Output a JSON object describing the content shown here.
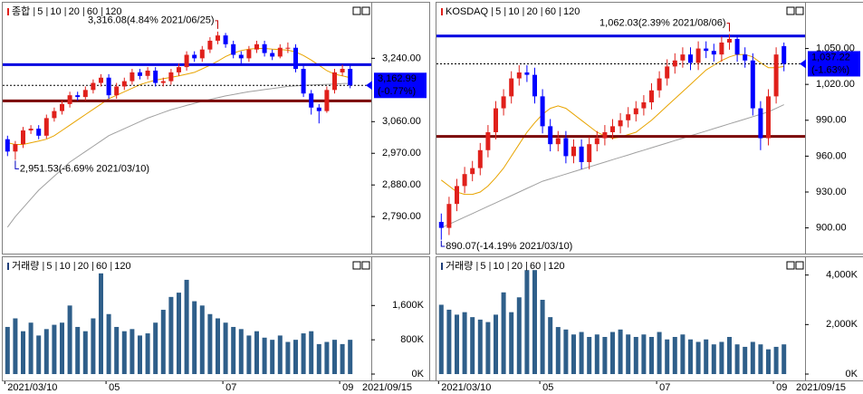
{
  "chart_data": [
    {
      "type": "candlestick",
      "legend": [
        {
          "name": "종합",
          "color": "#e0201b"
        },
        {
          "name": "5",
          "color": "#e0201b"
        },
        {
          "name": "10",
          "color": "#1a2fd0"
        },
        {
          "name": "20",
          "color": "#e8a400"
        },
        {
          "name": "60",
          "color": "#1a8a1a"
        },
        {
          "name": "120",
          "color": "#a0a0a0"
        }
      ],
      "up_color": "#e0201b",
      "down_color": "#0000ff",
      "open": [
        3010,
        2975,
        2996,
        3035,
        3040,
        3020,
        3070,
        3090,
        3110,
        3135,
        3130,
        3150,
        3170,
        3185,
        3135,
        3160,
        3175,
        3200,
        3190,
        3205,
        3170,
        3175,
        3200,
        3215,
        3250,
        3240,
        3265,
        3290,
        3305,
        3280,
        3250,
        3240,
        3265,
        3280,
        3255,
        3245,
        3270,
        3270,
        3210,
        3140,
        3100,
        3090,
        3150,
        3200,
        3210
      ],
      "high": [
        3020,
        3005,
        3045,
        3050,
        3050,
        3080,
        3100,
        3120,
        3145,
        3145,
        3160,
        3180,
        3195,
        3195,
        3170,
        3185,
        3210,
        3210,
        3215,
        3215,
        3185,
        3210,
        3225,
        3260,
        3260,
        3275,
        3300,
        3316.08,
        3312,
        3290,
        3260,
        3275,
        3290,
        3290,
        3265,
        3280,
        3285,
        3280,
        3220,
        3150,
        3110,
        3160,
        3210,
        3222,
        3220
      ],
      "low": [
        2962,
        2951.53,
        2985,
        3025,
        3010,
        3012,
        3060,
        3080,
        3100,
        3120,
        3120,
        3140,
        3160,
        3125,
        3125,
        3150,
        3165,
        3180,
        3180,
        3160,
        3160,
        3165,
        3190,
        3205,
        3230,
        3230,
        3255,
        3280,
        3270,
        3240,
        3225,
        3230,
        3255,
        3245,
        3235,
        3240,
        3255,
        3200,
        3130,
        3080,
        3055,
        3085,
        3140,
        3190,
        3155
      ],
      "close": [
        2975,
        2996,
        3035,
        3040,
        3020,
        3070,
        3090,
        3110,
        3135,
        3130,
        3150,
        3170,
        3185,
        3135,
        3160,
        3175,
        3200,
        3190,
        3205,
        3170,
        3175,
        3200,
        3215,
        3250,
        3240,
        3265,
        3290,
        3305,
        3280,
        3250,
        3240,
        3265,
        3280,
        3255,
        3245,
        3270,
        3270,
        3210,
        3140,
        3100,
        3090,
        3150,
        3200,
        3210,
        3163
      ],
      "ma": [
        {
          "color": "#e8a400",
          "values": [
            3000,
            2995,
            2995,
            3000,
            3005,
            3010,
            3020,
            3035,
            3050,
            3065,
            3080,
            3095,
            3110,
            3125,
            3135,
            3145,
            3155,
            3165,
            3172,
            3178,
            3182,
            3186,
            3190,
            3195,
            3200,
            3210,
            3220,
            3232,
            3245,
            3255,
            3262,
            3266,
            3268,
            3268,
            3266,
            3265,
            3263,
            3258,
            3248,
            3235,
            3220,
            3205,
            3195,
            3190,
            3185
          ]
        },
        {
          "color": "#a0a0a0",
          "values": [
            2760,
            2790,
            2815,
            2840,
            2865,
            2885,
            2905,
            2925,
            2945,
            2960,
            2975,
            2990,
            3005,
            3020,
            3030,
            3040,
            3050,
            3060,
            3070,
            3078,
            3086,
            3094,
            3100,
            3106,
            3112,
            3118,
            3123,
            3128,
            3133,
            3137,
            3141,
            3145,
            3148,
            3151,
            3154,
            3157,
            3160,
            3162,
            3163,
            3164,
            3165,
            3166,
            3167,
            3168,
            3169
          ]
        }
      ],
      "lines": [
        {
          "value": 3222,
          "color": "#0000e0"
        },
        {
          "value": 3119,
          "color": "#7a0000"
        }
      ],
      "last": {
        "value": 3162.99,
        "label": "3,162.99",
        "change": "(-0.77%)"
      },
      "high_annotation": "3,316.08(4.84% 2021/06/25)",
      "low_annotation": "2,951.53(-6.69% 2021/03/10)",
      "ylim": [
        2690,
        3380
      ],
      "yticks": [
        {
          "value": 2790,
          "label": "2,790.00"
        },
        {
          "value": 2880,
          "label": "2,880.00"
        },
        {
          "value": 2970,
          "label": "2,970.00"
        },
        {
          "value": 3060,
          "label": "3,060.00"
        },
        {
          "value": 3240,
          "label": "3,240.00"
        }
      ]
    },
    {
      "type": "bar",
      "legend": [
        {
          "name": "거래량",
          "color": "#1f3f7a"
        },
        {
          "name": "5",
          "color": "#e0201b"
        },
        {
          "name": "10",
          "color": "#1a2fd0"
        },
        {
          "name": "20",
          "color": "#e8a400"
        },
        {
          "name": "60",
          "color": "#1a8a1a"
        },
        {
          "name": "120",
          "color": "#a0a0a0"
        }
      ],
      "categories": [
        "2021/03/10",
        null,
        null,
        null,
        null,
        null,
        null,
        null,
        null,
        null,
        null,
        null,
        null,
        "05",
        null,
        null,
        null,
        null,
        null,
        null,
        null,
        null,
        null,
        null,
        null,
        null,
        null,
        null,
        "07",
        null,
        null,
        null,
        null,
        null,
        null,
        null,
        null,
        null,
        null,
        null,
        null,
        null,
        null,
        "09",
        null
      ],
      "values": [
        1100,
        1300,
        1000,
        1200,
        900,
        1050,
        1150,
        1200,
        1600,
        1100,
        1000,
        1300,
        2350,
        1400,
        1100,
        1000,
        1050,
        900,
        950,
        1200,
        1500,
        1800,
        1900,
        2200,
        1700,
        1600,
        1400,
        1300,
        1200,
        1100,
        1050,
        900,
        1000,
        850,
        800,
        900,
        750,
        800,
        950,
        1000,
        700,
        750,
        800,
        700,
        800
      ],
      "color": "#2f5f8a",
      "x_end_label": "2021/09/15",
      "ylim": [
        0,
        2600
      ],
      "yticks": [
        {
          "value": 0,
          "label": "0K"
        },
        {
          "value": 800,
          "label": "800K"
        },
        {
          "value": 1600,
          "label": "1,600K"
        }
      ]
    },
    {
      "type": "candlestick",
      "legend": [
        {
          "name": "KOSDAQ",
          "color": "#e0201b"
        },
        {
          "name": "5",
          "color": "#e0201b"
        },
        {
          "name": "10",
          "color": "#1a2fd0"
        },
        {
          "name": "20",
          "color": "#e8a400"
        },
        {
          "name": "60",
          "color": "#1a8a1a"
        },
        {
          "name": "120",
          "color": "#a0a0a0"
        }
      ],
      "up_color": "#e0201b",
      "down_color": "#0000ff",
      "open": [
        905,
        900,
        920,
        935,
        945,
        950,
        965,
        980,
        1000,
        1010,
        1025,
        1030,
        1028,
        1010,
        985,
        970,
        975,
        960,
        968,
        955,
        970,
        975,
        980,
        985,
        990,
        995,
        1000,
        1005,
        1015,
        1025,
        1035,
        1040,
        1045,
        1038,
        1050,
        1048,
        1045,
        1055,
        1058,
        1045,
        1040,
        1000,
        975,
        1010,
        1052
      ],
      "high": [
        912,
        926,
        941,
        951,
        956,
        971,
        986,
        1006,
        1016,
        1031,
        1036,
        1036,
        1034,
        1016,
        991,
        981,
        981,
        974,
        974,
        976,
        981,
        986,
        991,
        996,
        1001,
        1006,
        1011,
        1021,
        1031,
        1041,
        1046,
        1051,
        1051,
        1056,
        1056,
        1054,
        1060,
        1062.03,
        1060,
        1051,
        1046,
        1006,
        1016,
        1051,
        1055
      ],
      "low": [
        890.07,
        894,
        914,
        929,
        939,
        944,
        959,
        974,
        994,
        1004,
        1019,
        1022,
        1004,
        979,
        964,
        964,
        954,
        954,
        949,
        949,
        964,
        969,
        974,
        979,
        984,
        989,
        994,
        999,
        1009,
        1019,
        1029,
        1034,
        1032,
        1032,
        1042,
        1039,
        1039,
        1049,
        1039,
        1034,
        994,
        965,
        969,
        1004,
        1031
      ],
      "close": [
        900,
        920,
        935,
        945,
        950,
        965,
        980,
        1000,
        1010,
        1025,
        1030,
        1028,
        1010,
        985,
        970,
        975,
        960,
        968,
        955,
        970,
        975,
        980,
        985,
        990,
        995,
        1000,
        1005,
        1015,
        1025,
        1035,
        1040,
        1045,
        1038,
        1050,
        1048,
        1045,
        1055,
        1058,
        1045,
        1040,
        1000,
        975,
        1010,
        1045,
        1037.22
      ],
      "ma": [
        {
          "color": "#e8a400",
          "values": [
            940,
            935,
            930,
            928,
            928,
            930,
            935,
            942,
            950,
            960,
            970,
            980,
            988,
            995,
            1000,
            1002,
            1000,
            995,
            990,
            985,
            980,
            977,
            975,
            976,
            978,
            980,
            985,
            990,
            996,
            1002,
            1008,
            1014,
            1020,
            1026,
            1032,
            1036,
            1040,
            1043,
            1045,
            1045,
            1043,
            1038,
            1034,
            1034,
            1035
          ]
        },
        {
          "color": "#a0a0a0",
          "values": [
            900,
            903,
            906,
            909,
            912,
            915,
            918,
            921,
            924,
            927,
            930,
            933,
            936,
            939,
            941,
            943,
            945,
            947,
            949,
            951,
            953,
            955,
            957,
            959,
            961,
            963,
            965,
            967,
            969,
            971,
            973,
            975,
            977,
            979,
            981,
            983,
            985,
            987,
            989,
            991,
            993,
            995,
            997,
            1000,
            1003
          ]
        }
      ],
      "lines": [
        {
          "value": 1060.5,
          "color": "#0000e0"
        },
        {
          "value": 976.5,
          "color": "#7a0000"
        }
      ],
      "last": {
        "value": 1037.22,
        "label": "1,037.22",
        "change": "(-1.63%)"
      },
      "high_annotation": "1,062.03(2.39% 2021/08/06)",
      "low_annotation": "890.07(-14.19% 2021/03/10)",
      "ylim": [
        880,
        1083
      ],
      "yticks": [
        {
          "value": 900,
          "label": "900.00"
        },
        {
          "value": 930,
          "label": "930.00"
        },
        {
          "value": 960,
          "label": "960.00"
        },
        {
          "value": 990,
          "label": "990.00"
        },
        {
          "value": 1020,
          "label": "1,020.00"
        },
        {
          "value": 1050,
          "label": "1,050.00"
        }
      ]
    },
    {
      "type": "bar",
      "legend": [
        {
          "name": "거래량",
          "color": "#1f3f7a"
        },
        {
          "name": "5",
          "color": "#e0201b"
        },
        {
          "name": "10",
          "color": "#1a2fd0"
        },
        {
          "name": "20",
          "color": "#e8a400"
        },
        {
          "name": "60",
          "color": "#1a8a1a"
        },
        {
          "name": "120",
          "color": "#a0a0a0"
        }
      ],
      "categories": [
        "2021/03/10",
        null,
        null,
        null,
        null,
        null,
        null,
        null,
        null,
        null,
        null,
        null,
        null,
        "05",
        null,
        null,
        null,
        null,
        null,
        null,
        null,
        null,
        null,
        null,
        null,
        null,
        null,
        null,
        "07",
        null,
        null,
        null,
        null,
        null,
        null,
        null,
        null,
        null,
        null,
        null,
        null,
        null,
        null,
        "09",
        null
      ],
      "values": [
        2800,
        2600,
        2400,
        2500,
        2300,
        2200,
        2100,
        2400,
        3300,
        2500,
        3100,
        4200,
        4200,
        3000,
        2300,
        1900,
        1800,
        1600,
        1700,
        1500,
        1600,
        1500,
        1700,
        1800,
        1600,
        1500,
        1600,
        1500,
        1700,
        1400,
        1500,
        1600,
        1400,
        1300,
        1400,
        1200,
        1300,
        1500,
        1200,
        1100,
        1300,
        1200,
        1000,
        1100,
        1200
      ],
      "color": "#2f5f8a",
      "x_end_label": "2021/09/15",
      "ylim": [
        0,
        4500
      ],
      "yticks": [
        {
          "value": 0,
          "label": "0K"
        },
        {
          "value": 2000,
          "label": "2,000K"
        },
        {
          "value": 4000,
          "label": "4,000K"
        }
      ]
    }
  ]
}
